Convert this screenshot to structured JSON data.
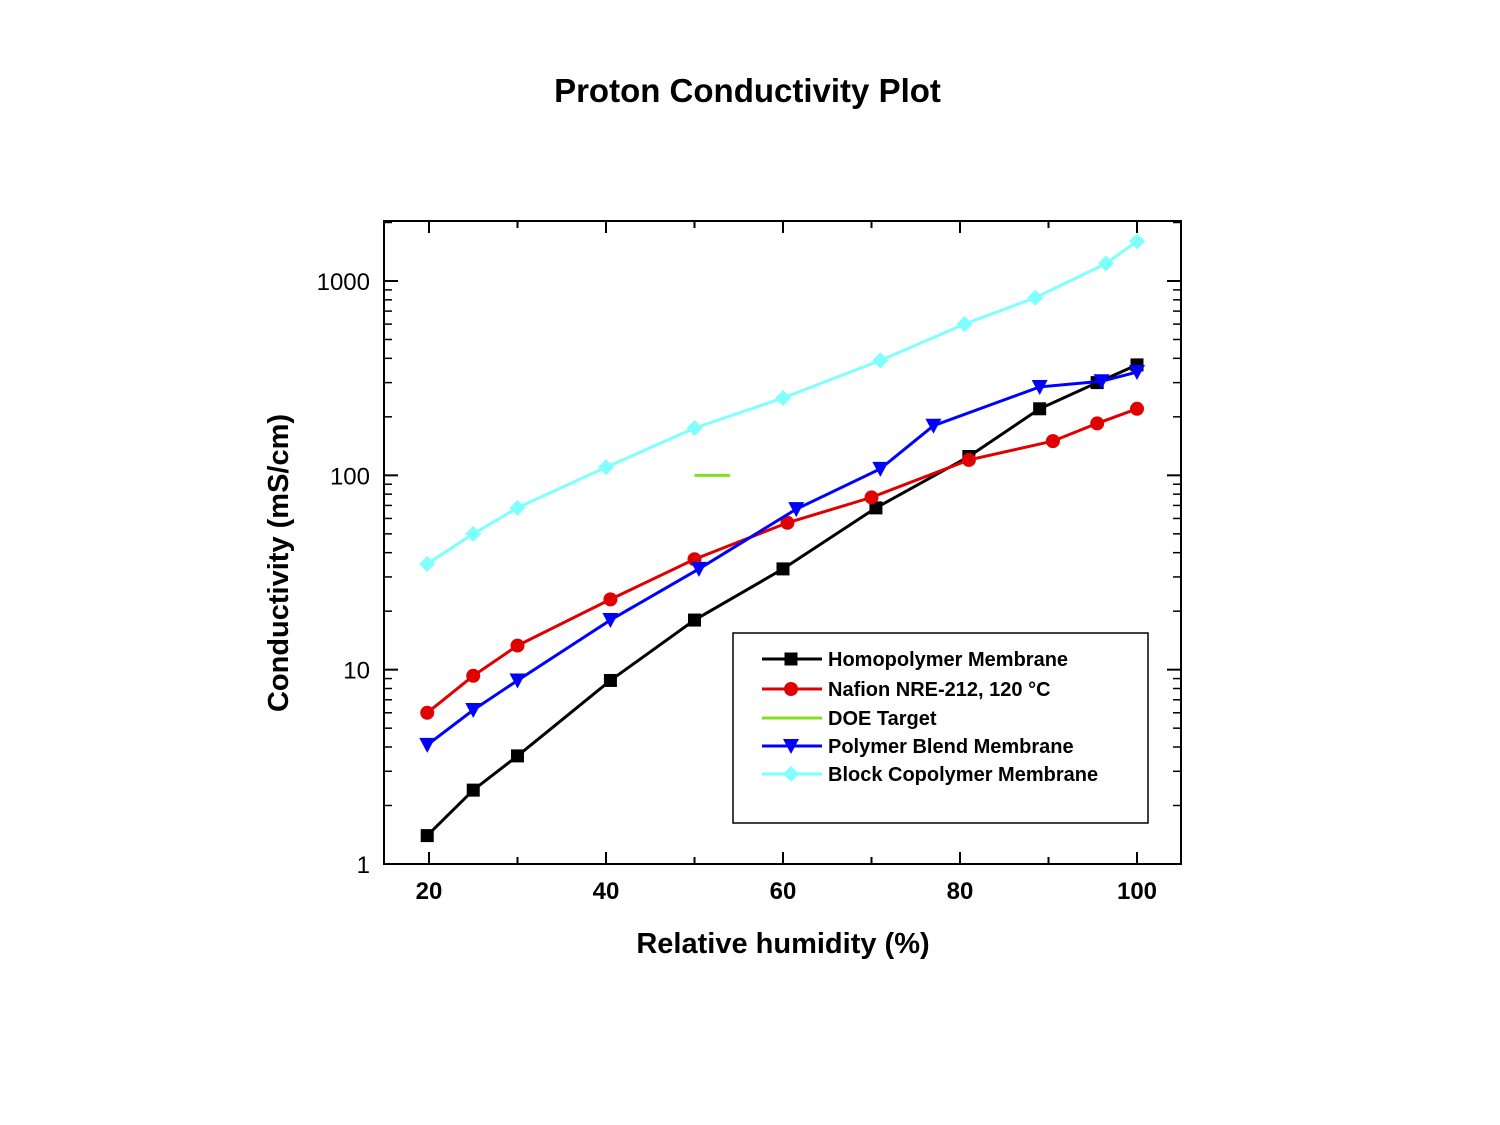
{
  "chart_data": {
    "type": "line",
    "title": "Proton Conductivity Plot",
    "xlabel": "Relative humidity (%)",
    "ylabel": "Conductivity (mS/cm)",
    "xlim": [
      15,
      105
    ],
    "ylim": [
      1,
      2000
    ],
    "yscale": "log",
    "x_ticks": [
      20,
      40,
      60,
      80,
      100
    ],
    "x_tick_labels": [
      "20",
      "40",
      "60",
      "80",
      "100"
    ],
    "y_ticks": [
      1,
      10,
      100,
      1000
    ],
    "y_tick_labels": [
      "1",
      "10",
      "100",
      "1000"
    ],
    "grid": false,
    "legend_position": "lower-right",
    "series": [
      {
        "name": "Homopolymer Membrane",
        "color": "#000000",
        "marker": "square",
        "x": [
          19.8,
          25,
          30,
          40.5,
          50,
          60,
          70.5,
          81,
          89,
          95.5,
          100
        ],
        "y": [
          1.4,
          2.4,
          3.6,
          8.8,
          18,
          33,
          68,
          125,
          220,
          300,
          370
        ]
      },
      {
        "name": "Nafion NRE-212, 120 °C",
        "color": "#e00000",
        "marker": "circle",
        "x": [
          19.8,
          25,
          30,
          40.5,
          50,
          60.5,
          70,
          81,
          90.5,
          95.5,
          100
        ],
        "y": [
          6,
          9.3,
          13.3,
          23,
          37,
          57,
          77,
          120,
          150,
          185,
          220
        ]
      },
      {
        "name": "DOE Target",
        "color": "#80e020",
        "marker": "none",
        "x": [
          50,
          54
        ],
        "y": [
          100,
          100
        ]
      },
      {
        "name": "Polymer Blend Membrane",
        "color": "#0000ff",
        "marker": "triangle-down",
        "x": [
          19.8,
          25,
          30,
          40.5,
          50.5,
          61.5,
          71,
          77,
          89,
          96,
          100
        ],
        "y": [
          4.1,
          6.2,
          8.8,
          18,
          33,
          67,
          108,
          180,
          285,
          305,
          340
        ]
      },
      {
        "name": "Block Copolymer Membrane",
        "color": "#80ffff",
        "marker": "diamond",
        "x": [
          19.8,
          25,
          30,
          40,
          50,
          60,
          71,
          80.5,
          88.5,
          96.5,
          100
        ],
        "y": [
          35,
          50,
          68,
          110,
          175,
          250,
          390,
          600,
          820,
          1230,
          1600
        ]
      }
    ]
  }
}
